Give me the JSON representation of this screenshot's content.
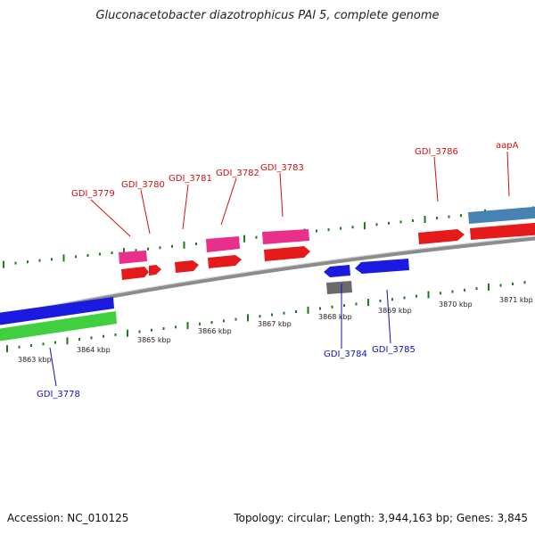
{
  "title": "Gluconacetobacter diazotrophicus PAl 5, complete genome",
  "footer": {
    "accession": "Accession: NC_010125",
    "summary": "Topology: circular; Length: 3,944,163 bp; Genes: 3,845"
  },
  "colors": {
    "backbone": "#8c8c8c",
    "tick": "#1f7a1f",
    "plus_label": "#d01010",
    "minus_label": "#1010c0",
    "cds_red": "#e51a1a",
    "cds_pink": "#e8308a",
    "cds_blue": "#1a1ae0",
    "cds_green": "#3fcf3f",
    "cds_gray": "#6a6a6a",
    "cds_steel": "#4682b4"
  },
  "scale_labels": [
    "3863 kbp",
    "3864 kbp",
    "3865 kbp",
    "3866 kbp",
    "3867 kbp",
    "3868 kbp",
    "3869 kbp",
    "3870 kbp",
    "3871 kbp"
  ],
  "gene_labels_plus": [
    "GDI_3779",
    "GDI_3780",
    "GDI_3781",
    "GDI_3782",
    "GDI_3783",
    "GDI_3786",
    "aapA"
  ],
  "gene_labels_minus": [
    "GDI_3778",
    "GDI_3784",
    "GDI_3785"
  ]
}
